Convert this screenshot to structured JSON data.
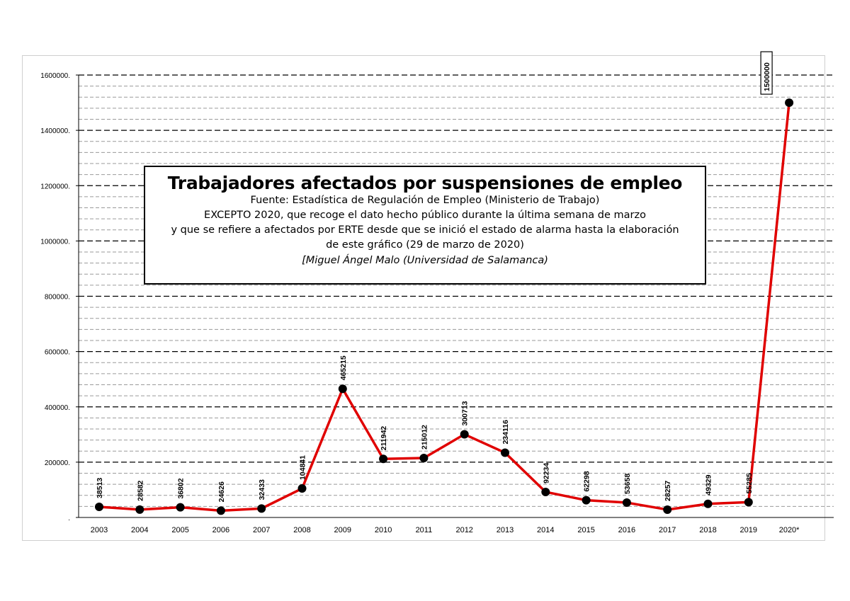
{
  "chart_data": {
    "type": "line",
    "title": "Trabajadores afectados por suspensiones de empleo",
    "subtitle_lines": [
      "Fuente: Estadística de Regulación de Empleo (Ministerio de Trabajo)",
      "EXCEPTO 2020, que recoge el dato hecho público durante la última semana de marzo",
      "y que se refiere a afectados por ERTE desde que se inició el estado de alarma hasta la elaboración",
      "de este gráfico (29 de marzo de 2020)"
    ],
    "author": "[Miguel Ángel Malo (Universidad de Salamanca)",
    "categories": [
      "2003",
      "2004",
      "2005",
      "2006",
      "2007",
      "2008",
      "2009",
      "2010",
      "2011",
      "2012",
      "2013",
      "2014",
      "2015",
      "2016",
      "2017",
      "2018",
      "2019",
      "2020*"
    ],
    "values": [
      38513,
      28582,
      36802,
      24626,
      32433,
      104841,
      465215,
      211942,
      215012,
      300713,
      234116,
      92234,
      62298,
      53658,
      28257,
      49329,
      55285,
      1500000
    ],
    "data_labels": [
      "38513",
      "28582",
      "36802",
      "24626",
      "32433",
      "104841",
      "465215",
      "211942",
      "215012",
      "300713",
      "234116",
      "92234",
      "62298",
      "53658",
      "28257",
      "49329",
      "55285",
      "1500000"
    ],
    "y_tick_labels": [
      ".",
      "200000.",
      "400000.",
      "600000.",
      "800000.",
      "1000000.",
      "1200000.",
      "1400000.",
      "1600000."
    ],
    "ylim": [
      0,
      1600000
    ],
    "grid": true,
    "line_color": "#e00000",
    "marker_color": "#000000"
  }
}
